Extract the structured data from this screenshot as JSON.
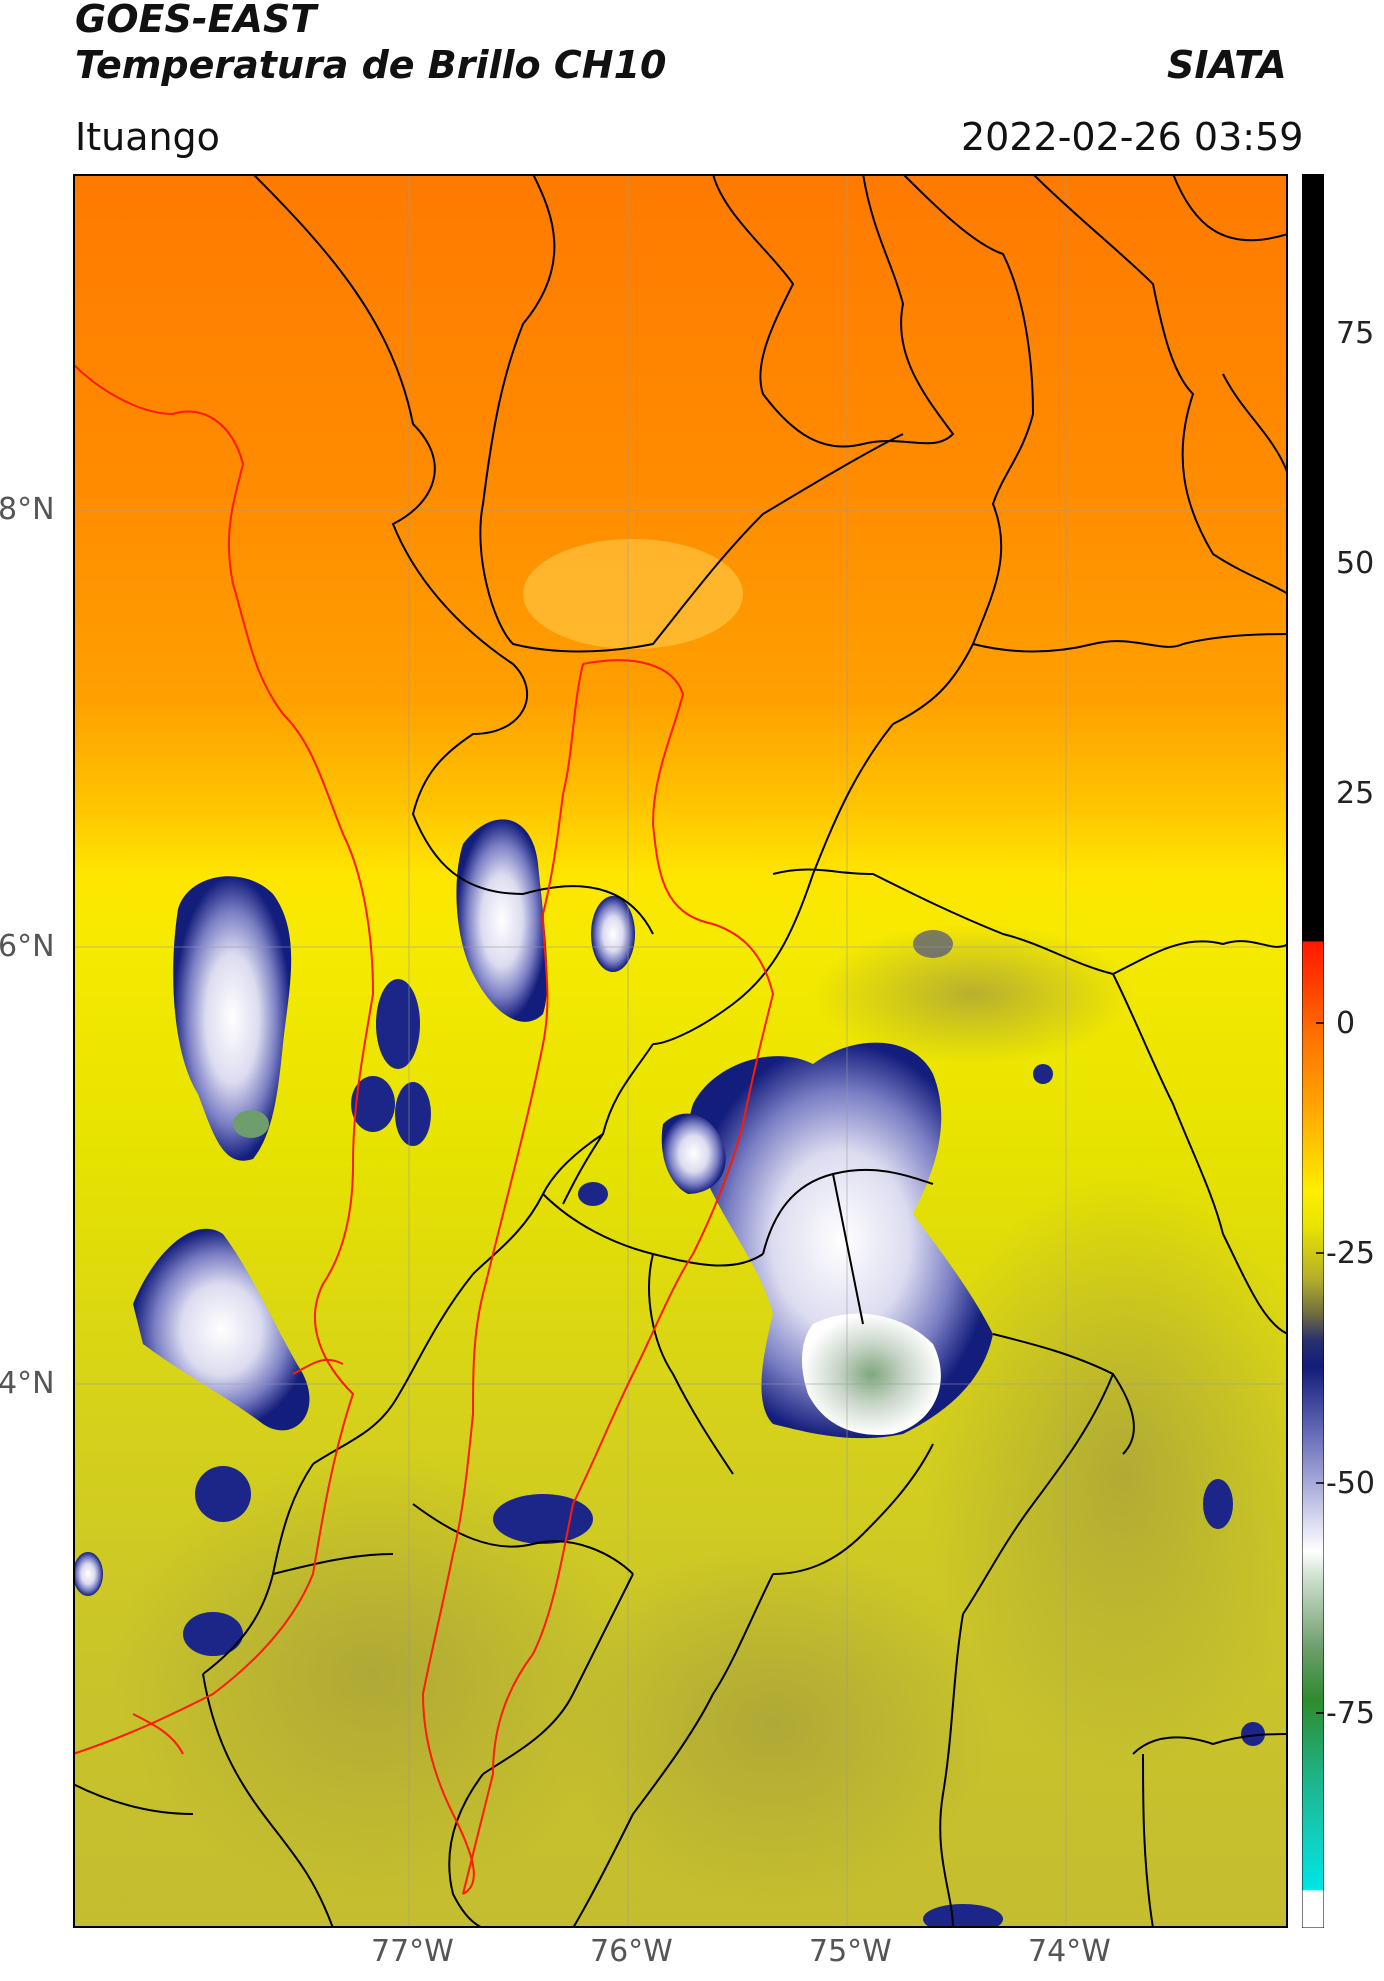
{
  "header": {
    "satellite": "GOES-EAST",
    "product": "Temperatura de Brillo CH10",
    "agency": "SIATA",
    "region": "Ituango",
    "datetime": "2022-02-26 03:59"
  },
  "map": {
    "lat_labels": [
      "8°N",
      "6°N",
      "4°N"
    ],
    "lon_labels": [
      "77°W",
      "76°W",
      "75°W",
      "74°W"
    ],
    "gridlines": true
  },
  "colorbar": {
    "tick_labels": [
      "75",
      "50",
      "25",
      "0",
      "-25",
      "-50",
      "-75"
    ],
    "colors": {
      "black": "#000000",
      "red": "#ff1a00",
      "orange": "#ff8a00",
      "yellow": "#ffee00",
      "olive": "#8a8a2a",
      "navy": "#121c7a",
      "lavender": "#a9a9d8",
      "white": "#ffffff",
      "green": "#2e8b2e",
      "cyan": "#00e5e5"
    }
  }
}
